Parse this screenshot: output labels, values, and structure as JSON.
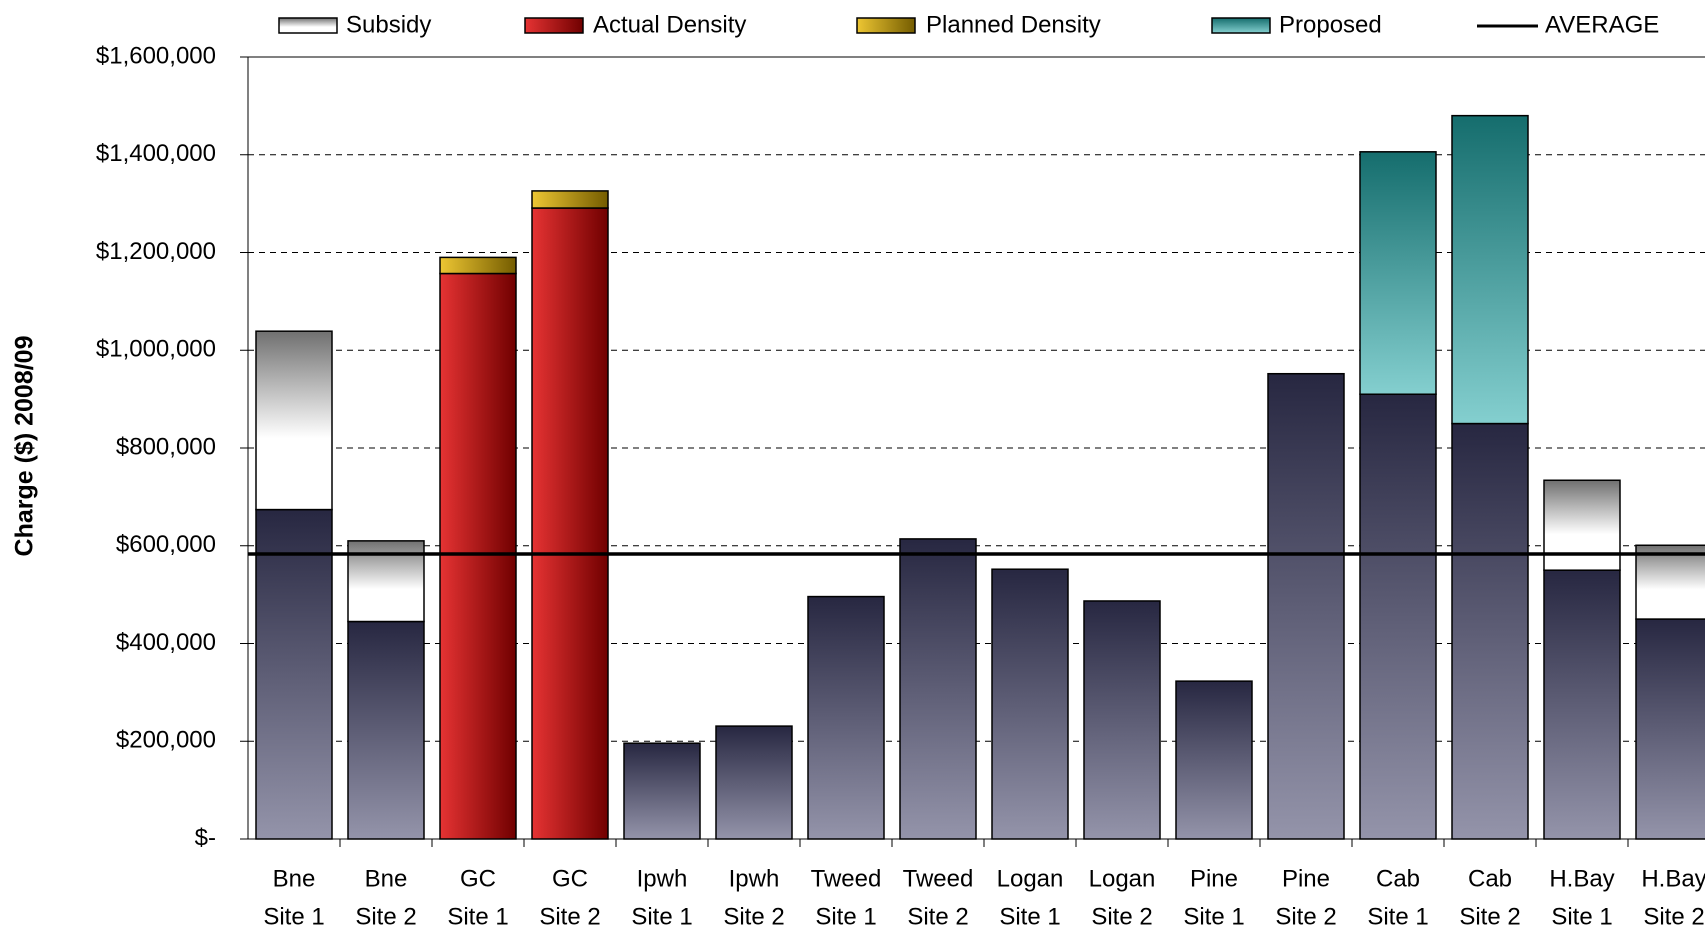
{
  "chart_data": {
    "type": "stacked_bar",
    "y_label": "Charge ($) 2008/09",
    "categories": [
      [
        "Bne",
        "Site 1"
      ],
      [
        "Bne",
        "Site 2"
      ],
      [
        "GC",
        "Site 1"
      ],
      [
        "GC",
        "Site 2"
      ],
      [
        "Ipwh",
        "Site 1"
      ],
      [
        "Ipwh",
        "Site 2"
      ],
      [
        "Tweed",
        "Site 1"
      ],
      [
        "Tweed",
        "Site 2"
      ],
      [
        "Logan",
        "Site 1"
      ],
      [
        "Logan",
        "Site 2"
      ],
      [
        "Pine",
        "Site 1"
      ],
      [
        "Pine",
        "Site 2"
      ],
      [
        "Cab",
        "Site 1"
      ],
      [
        "Cab",
        "Site 2"
      ],
      [
        "H.Bay",
        "Site 1"
      ],
      [
        "H.Bay",
        "Site 2"
      ]
    ],
    "series": [
      {
        "color": "#3c3c64",
        "values": [
          674000,
          445000,
          null,
          null,
          196000,
          231000,
          496000,
          614000,
          552000,
          487000,
          323000,
          952000,
          910000,
          850000,
          550000,
          450000
        ]
      },
      {
        "name": "Subsidy",
        "color": "#a0a0a0",
        "values": [
          365000,
          165000,
          null,
          null,
          null,
          null,
          null,
          null,
          null,
          null,
          null,
          null,
          null,
          null,
          184000,
          151000
        ]
      },
      {
        "name": "Actual Density",
        "color": "#e00000",
        "values": [
          null,
          null,
          1157000,
          1291000,
          null,
          null,
          null,
          null,
          null,
          null,
          null,
          null,
          null,
          null,
          null,
          null
        ]
      },
      {
        "name": "Planned Density",
        "color": "#e8b800",
        "values": [
          null,
          null,
          33000,
          35000,
          null,
          null,
          null,
          null,
          null,
          null,
          null,
          null,
          null,
          null,
          null,
          null
        ]
      },
      {
        "name": "Proposed",
        "color": "#20a8a8",
        "values": [
          null,
          null,
          null,
          null,
          null,
          null,
          null,
          null,
          null,
          null,
          null,
          null,
          496000,
          630000,
          null,
          null
        ]
      }
    ],
    "average": {
      "name": "AVERAGE",
      "value": 583000,
      "color": "#000000"
    },
    "ylim": [
      0,
      1600000
    ],
    "yticks": [
      {
        "value": 0,
        "label": "$-"
      },
      {
        "value": 200000,
        "label": "$200,000"
      },
      {
        "value": 400000,
        "label": "$400,000"
      },
      {
        "value": 600000,
        "label": "$600,000"
      },
      {
        "value": 800000,
        "label": "$800,000"
      },
      {
        "value": 1000000,
        "label": "$1,000,000"
      },
      {
        "value": 1200000,
        "label": "$1,200,000"
      },
      {
        "value": 1400000,
        "label": "$1,400,000"
      },
      {
        "value": 1600000,
        "label": "$1,600,000"
      }
    ],
    "grid": true
  }
}
